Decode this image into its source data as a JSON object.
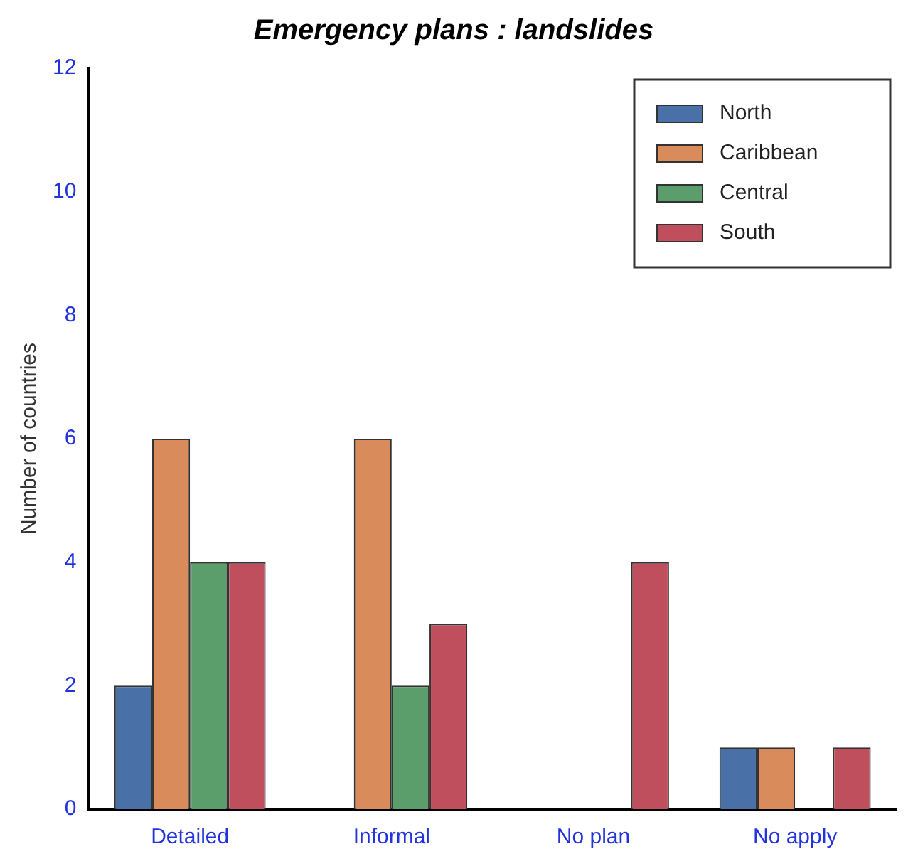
{
  "chart_data": {
    "type": "bar",
    "title": "Emergency plans : landslides",
    "ylabel": "Number of countries",
    "categories": [
      "Detailed",
      "Informal",
      "No plan",
      "No apply"
    ],
    "series": [
      {
        "name": "North",
        "color": "#4a70a8",
        "values": [
          2,
          0,
          0,
          1
        ]
      },
      {
        "name": "Caribbean",
        "color": "#d98b5b",
        "values": [
          6,
          6,
          0,
          1
        ]
      },
      {
        "name": "Central",
        "color": "#5b9e6b",
        "values": [
          4,
          2,
          0,
          0
        ]
      },
      {
        "name": "South",
        "color": "#bf4f5c",
        "values": [
          4,
          3,
          4,
          1
        ]
      }
    ],
    "ylim": [
      0,
      12
    ],
    "yticks": [
      0,
      2,
      4,
      6,
      8,
      10,
      12
    ],
    "grid": false,
    "legend": "top right"
  }
}
